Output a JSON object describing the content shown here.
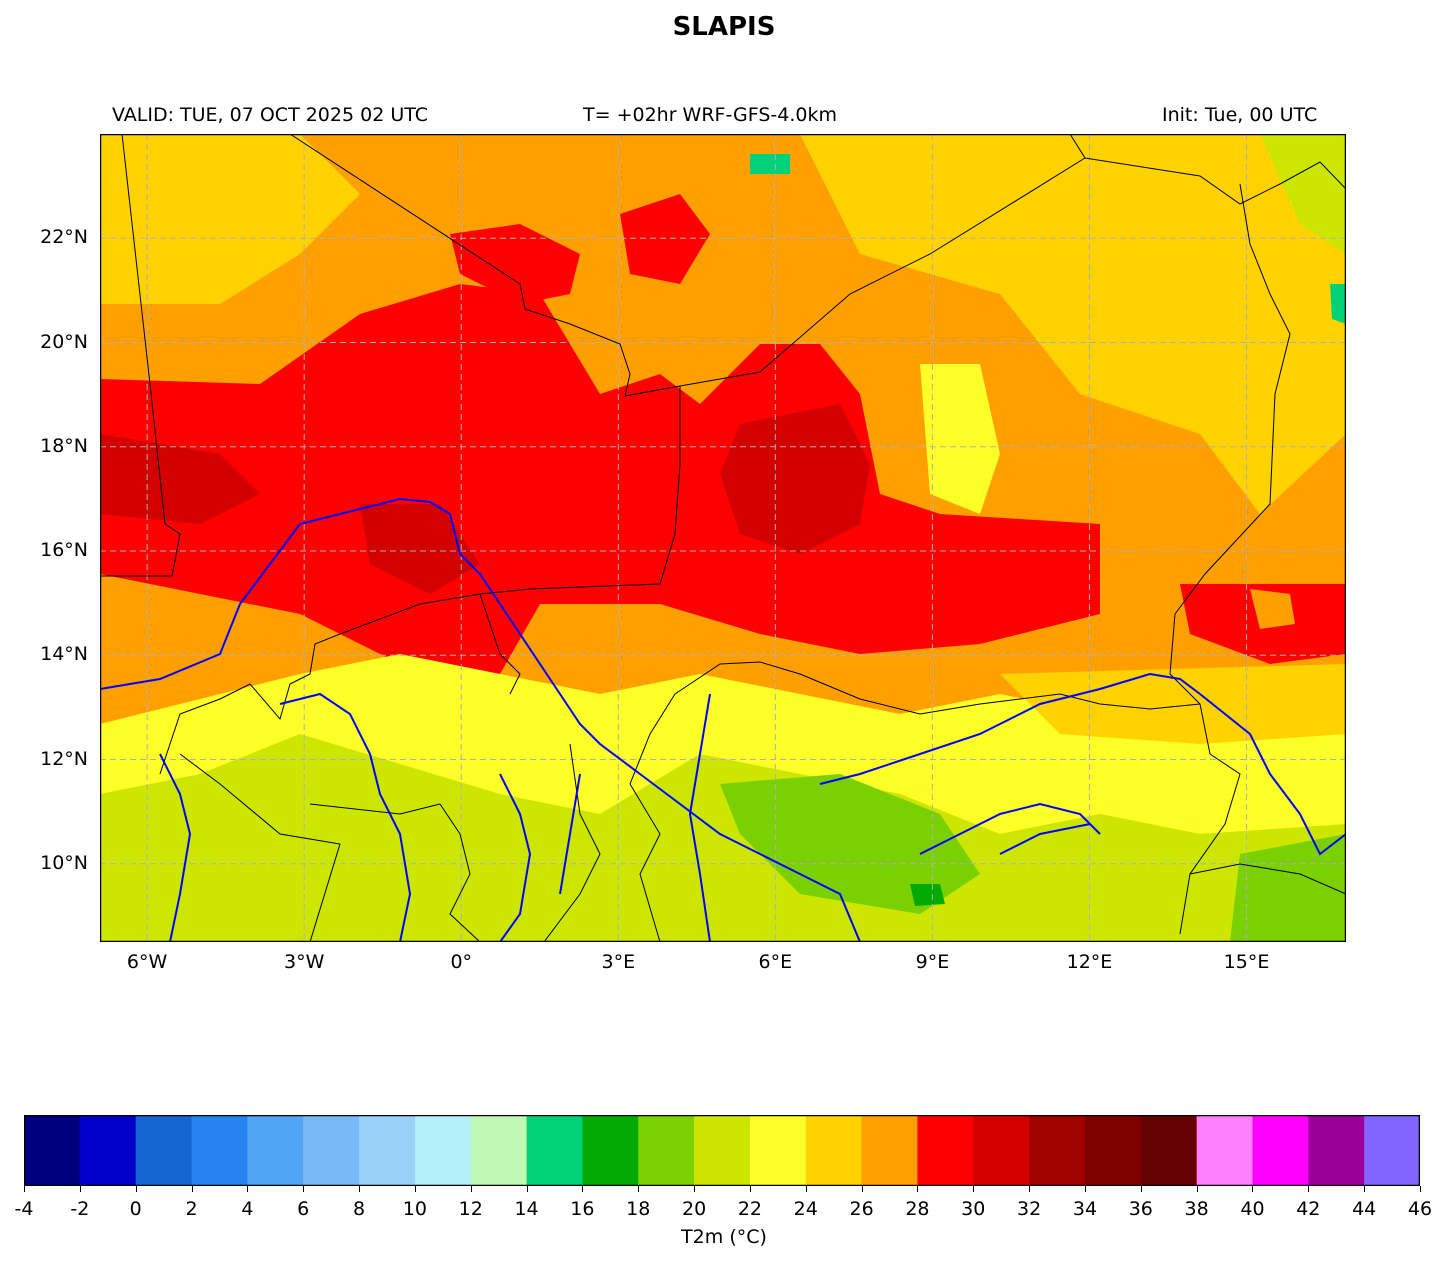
{
  "title": "SLAPIS",
  "header": {
    "valid": "VALID: TUE, 07 OCT 2025 02 UTC",
    "forecast": "T= +02hr WRF-GFS-4.0km",
    "init": "Init: Tue, 00 UTC"
  },
  "map": {
    "lon_range": [
      -6.9,
      16.9
    ],
    "lat_range": [
      8.5,
      24.0
    ],
    "lat_ticks": [
      {
        "value": 22,
        "label": "22°N"
      },
      {
        "value": 20,
        "label": "20°N"
      },
      {
        "value": 18,
        "label": "18°N"
      },
      {
        "value": 16,
        "label": "16°N"
      },
      {
        "value": 14,
        "label": "14°N"
      },
      {
        "value": 12,
        "label": "12°N"
      },
      {
        "value": 10,
        "label": "10°N"
      }
    ],
    "lon_ticks": [
      {
        "value": -6,
        "label": "6°W"
      },
      {
        "value": -3,
        "label": "3°W"
      },
      {
        "value": 0,
        "label": "0°"
      },
      {
        "value": 3,
        "label": "3°E"
      },
      {
        "value": 6,
        "label": "6°E"
      },
      {
        "value": 9,
        "label": "9°E"
      },
      {
        "value": 12,
        "label": "12°E"
      },
      {
        "value": 15,
        "label": "15°E"
      }
    ],
    "gridlines": true,
    "border_color": "#000000",
    "river_color": "#0000ff"
  },
  "colorbar": {
    "label": "T2m (°C)",
    "tick_labels": [
      "-4",
      "-2",
      "0",
      "2",
      "4",
      "6",
      "8",
      "10",
      "12",
      "14",
      "16",
      "18",
      "20",
      "22",
      "24",
      "26",
      "28",
      "30",
      "32",
      "34",
      "36",
      "38",
      "40",
      "42",
      "44",
      "46"
    ],
    "colors": [
      "#00007f",
      "#0000c8",
      "#1464d2",
      "#2882f0",
      "#50a5f5",
      "#78b9fa",
      "#96d2fa",
      "#b4f0fa",
      "#c0f8b4",
      "#00d27a",
      "#00aa00",
      "#7ad000",
      "#cde600",
      "#fdff26",
      "#ffd200",
      "#ffa000",
      "#ff0000",
      "#d20000",
      "#a00000",
      "#800000",
      "#640000",
      "#ff80ff",
      "#ff00ff",
      "#9b009b",
      "#8066ff"
    ]
  }
}
